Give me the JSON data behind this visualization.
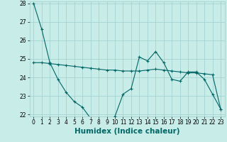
{
  "xlabel": "Humidex (Indice chaleur)",
  "ylabel": "",
  "background_color": "#c8ece8",
  "grid_color": "#9ecece",
  "line_color": "#006666",
  "x_values": [
    0,
    1,
    2,
    3,
    4,
    5,
    6,
    7,
    8,
    9,
    10,
    11,
    12,
    13,
    14,
    15,
    16,
    17,
    18,
    19,
    20,
    21,
    22,
    23
  ],
  "line1": [
    28.0,
    26.6,
    24.8,
    23.9,
    23.2,
    22.7,
    22.4,
    21.8,
    21.7,
    21.7,
    21.9,
    23.1,
    23.4,
    25.1,
    24.9,
    25.4,
    24.8,
    23.9,
    23.8,
    24.3,
    24.3,
    23.9,
    23.1,
    22.3
  ],
  "line2": [
    24.8,
    24.8,
    24.75,
    24.7,
    24.65,
    24.6,
    24.55,
    24.5,
    24.45,
    24.4,
    24.4,
    24.35,
    24.35,
    24.35,
    24.4,
    24.45,
    24.4,
    24.35,
    24.3,
    24.25,
    24.25,
    24.2,
    24.15,
    22.3
  ],
  "ylim": [
    21.9,
    28.1
  ],
  "xlim": [
    -0.5,
    23.5
  ],
  "yticks": [
    22,
    23,
    24,
    25,
    26,
    27,
    28
  ],
  "xticks": [
    0,
    1,
    2,
    3,
    4,
    5,
    6,
    7,
    8,
    9,
    10,
    11,
    12,
    13,
    14,
    15,
    16,
    17,
    18,
    19,
    20,
    21,
    22,
    23
  ],
  "tick_fontsize": 5.5,
  "xlabel_fontsize": 7.5
}
